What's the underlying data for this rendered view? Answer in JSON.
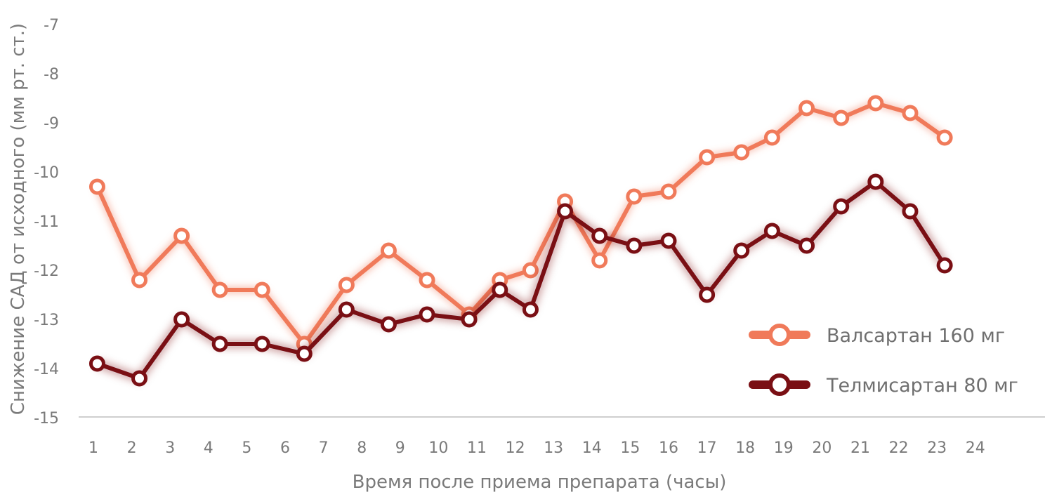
{
  "chart_data": {
    "type": "line",
    "xlabel": "Время после приема препарата (часы)",
    "ylabel": "Снижение САД от исходного (мм рт. ст.)",
    "ylim": [
      -15,
      -7
    ],
    "yticks": [
      "-7",
      "-8",
      "-9",
      "-10",
      "-11",
      "-12",
      "-13",
      "-14",
      "-15"
    ],
    "xticks": [
      "1",
      "2",
      "3",
      "4",
      "5",
      "6",
      "7",
      "8",
      "9",
      "10",
      "11",
      "12",
      "13",
      "14",
      "15",
      "16",
      "17",
      "18",
      "19",
      "20",
      "21",
      "22",
      "23",
      "24"
    ],
    "grid": false,
    "legend_position": "bottom-right",
    "series": [
      {
        "name": "Валсартан 160 мг",
        "color": "#f07a5a",
        "points": [
          [
            1.1,
            -10.3
          ],
          [
            2.2,
            -12.2
          ],
          [
            3.3,
            -11.3
          ],
          [
            4.3,
            -12.4
          ],
          [
            5.4,
            -12.4
          ],
          [
            6.5,
            -13.5
          ],
          [
            7.6,
            -12.3
          ],
          [
            8.7,
            -11.6
          ],
          [
            9.7,
            -12.2
          ],
          [
            10.8,
            -12.9
          ],
          [
            11.6,
            -12.2
          ],
          [
            12.4,
            -12.0
          ],
          [
            13.3,
            -10.6
          ],
          [
            14.2,
            -11.8
          ],
          [
            15.1,
            -10.5
          ],
          [
            16.0,
            -10.4
          ],
          [
            17.0,
            -9.7
          ],
          [
            17.9,
            -9.6
          ],
          [
            18.7,
            -9.3
          ],
          [
            19.6,
            -8.7
          ],
          [
            20.5,
            -8.9
          ],
          [
            21.4,
            -8.6
          ],
          [
            22.3,
            -8.8
          ],
          [
            23.2,
            -9.3
          ]
        ]
      },
      {
        "name": "Телмисартан 80 мг",
        "color": "#7a0f14",
        "points": [
          [
            1.1,
            -13.9
          ],
          [
            2.2,
            -14.2
          ],
          [
            3.3,
            -13.0
          ],
          [
            4.3,
            -13.5
          ],
          [
            5.4,
            -13.5
          ],
          [
            6.5,
            -13.7
          ],
          [
            7.6,
            -12.8
          ],
          [
            8.7,
            -13.1
          ],
          [
            9.7,
            -12.9
          ],
          [
            10.8,
            -13.0
          ],
          [
            11.6,
            -12.4
          ],
          [
            12.4,
            -12.8
          ],
          [
            13.3,
            -10.8
          ],
          [
            14.2,
            -11.3
          ],
          [
            15.1,
            -11.5
          ],
          [
            16.0,
            -11.4
          ],
          [
            17.0,
            -12.5
          ],
          [
            17.9,
            -11.6
          ],
          [
            18.7,
            -11.2
          ],
          [
            19.6,
            -11.5
          ],
          [
            20.5,
            -10.7
          ],
          [
            21.4,
            -10.2
          ],
          [
            22.3,
            -10.8
          ],
          [
            23.2,
            -11.9
          ]
        ]
      }
    ]
  }
}
